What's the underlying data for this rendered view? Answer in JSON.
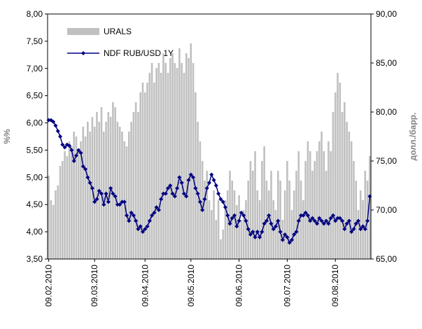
{
  "chart_data": {
    "type": "bar_line",
    "y_label": "%%",
    "y2_label": "долл./барр.",
    "categories": [
      "09.02.2010",
      null,
      null,
      null,
      null,
      null,
      null,
      null,
      null,
      null,
      null,
      null,
      null,
      null,
      null,
      null,
      null,
      null,
      null,
      null,
      "09.03.2010",
      null,
      null,
      null,
      null,
      null,
      null,
      null,
      null,
      null,
      null,
      null,
      null,
      null,
      null,
      null,
      null,
      null,
      null,
      null,
      null,
      null,
      "09.04.2010",
      null,
      null,
      null,
      null,
      null,
      null,
      null,
      null,
      null,
      null,
      null,
      null,
      null,
      null,
      null,
      null,
      null,
      null,
      null,
      "09.05.2010",
      null,
      null,
      null,
      null,
      null,
      null,
      null,
      null,
      null,
      null,
      null,
      null,
      null,
      null,
      null,
      null,
      null,
      null,
      null,
      null,
      "09.06.2010",
      null,
      null,
      null,
      null,
      null,
      null,
      null,
      null,
      null,
      null,
      null,
      null,
      null,
      null,
      null,
      null,
      null,
      null,
      null,
      null,
      "09.07.2010",
      null,
      null,
      null,
      null,
      null,
      null,
      null,
      null,
      null,
      null,
      null,
      null,
      null,
      null,
      null,
      null,
      null,
      null,
      null,
      null,
      "09.08.2010",
      null,
      null,
      null,
      null,
      null,
      null,
      null,
      null,
      null,
      null,
      null,
      null,
      null,
      null,
      null
    ],
    "series": [
      {
        "name": "URALS",
        "type": "bar",
        "axis": "y2",
        "color": "#c0c0c0",
        "values": [
          73.5,
          71,
          70.5,
          72,
          72.5,
          74.5,
          75,
          76,
          75.5,
          77,
          76.5,
          78,
          77.5,
          76,
          77,
          78.5,
          77.5,
          79,
          78,
          79.5,
          78.5,
          80,
          79,
          80.5,
          78,
          79,
          80,
          79.5,
          81,
          80.5,
          79,
          78.5,
          78,
          77,
          76.5,
          78,
          79,
          80,
          81,
          80,
          82,
          83,
          82,
          83,
          84,
          85,
          83,
          84.5,
          85,
          84,
          86,
          85,
          84,
          85.5,
          86,
          85,
          84.5,
          86.5,
          85,
          84,
          86,
          85.5,
          87,
          85,
          82,
          79,
          77,
          75,
          73,
          74,
          71,
          70,
          72,
          69,
          71,
          67,
          68,
          71,
          72,
          74,
          73,
          72,
          70.5,
          71.5,
          69,
          70,
          71,
          73,
          75,
          74,
          76,
          72,
          71,
          75,
          76.5,
          73,
          72,
          74,
          71,
          70,
          74,
          73,
          69,
          72,
          75,
          73,
          70,
          72,
          74,
          76,
          73,
          71,
          75,
          77,
          76,
          74,
          75,
          76,
          77,
          78,
          76,
          74,
          77,
          76,
          80,
          82,
          84,
          83,
          80,
          81,
          79,
          78,
          77,
          75,
          73,
          70,
          72,
          71,
          74,
          73,
          75.5
        ]
      },
      {
        "name": "NDF RUB/USD 1Y",
        "type": "line",
        "axis": "y",
        "color": "#000080",
        "values": [
          6.05,
          6.05,
          6.02,
          5.95,
          5.85,
          5.75,
          5.6,
          5.55,
          5.6,
          5.58,
          5.5,
          5.3,
          5.4,
          5.5,
          5.45,
          5.2,
          5.15,
          5.0,
          4.9,
          4.8,
          4.55,
          4.6,
          4.75,
          4.7,
          4.5,
          4.7,
          4.55,
          4.8,
          4.7,
          4.65,
          4.5,
          4.5,
          4.55,
          4.55,
          4.3,
          4.2,
          4.35,
          4.3,
          4.2,
          4.05,
          4.1,
          4.0,
          4.05,
          4.1,
          4.2,
          4.3,
          4.35,
          4.45,
          4.4,
          4.6,
          4.7,
          4.7,
          4.8,
          4.85,
          4.7,
          4.65,
          4.8,
          5.0,
          4.9,
          4.7,
          4.65,
          4.95,
          5.05,
          5.0,
          4.8,
          4.7,
          4.55,
          4.4,
          4.6,
          4.8,
          4.9,
          5.05,
          4.95,
          4.85,
          4.7,
          4.6,
          4.55,
          4.45,
          4.3,
          4.15,
          4.25,
          4.3,
          4.1,
          4.2,
          4.35,
          4.3,
          4.2,
          4.05,
          3.95,
          4.0,
          3.9,
          4.0,
          3.9,
          4.0,
          4.15,
          4.2,
          4.3,
          4.15,
          4.05,
          4.1,
          4.2,
          4.0,
          3.85,
          3.95,
          3.9,
          3.8,
          3.85,
          3.95,
          4.0,
          4.2,
          4.3,
          4.3,
          4.35,
          4.3,
          4.2,
          4.25,
          4.2,
          4.15,
          4.25,
          4.2,
          4.15,
          4.2,
          4.15,
          4.25,
          4.3,
          4.2,
          4.25,
          4.25,
          4.2,
          4.05,
          4.15,
          4.2,
          4.0,
          4.05,
          4.15,
          4.2,
          4.05,
          4.1,
          4.05,
          4.2,
          4.65
        ]
      }
    ],
    "ylim": [
      3.5,
      8
    ],
    "yticks": [
      {
        "value": 3.5,
        "label": "3,50"
      },
      {
        "value": 4,
        "label": "4,00"
      },
      {
        "value": 4.5,
        "label": "4,50"
      },
      {
        "value": 5,
        "label": "5,00"
      },
      {
        "value": 5.5,
        "label": "5,50"
      },
      {
        "value": 6,
        "label": "6,00"
      },
      {
        "value": 6.5,
        "label": "6,50"
      },
      {
        "value": 7,
        "label": "7,00"
      },
      {
        "value": 7.5,
        "label": "7,50"
      },
      {
        "value": 8,
        "label": "8,00"
      }
    ],
    "y2lim": [
      65,
      90
    ],
    "y2ticks": [
      {
        "value": 65,
        "label": "65,00"
      },
      {
        "value": 70,
        "label": "70,00"
      },
      {
        "value": 75,
        "label": "75,00"
      },
      {
        "value": 80,
        "label": "80,00"
      },
      {
        "value": 85,
        "label": "85,00"
      },
      {
        "value": 90,
        "label": "90,00"
      }
    ],
    "legend": "top-left"
  }
}
